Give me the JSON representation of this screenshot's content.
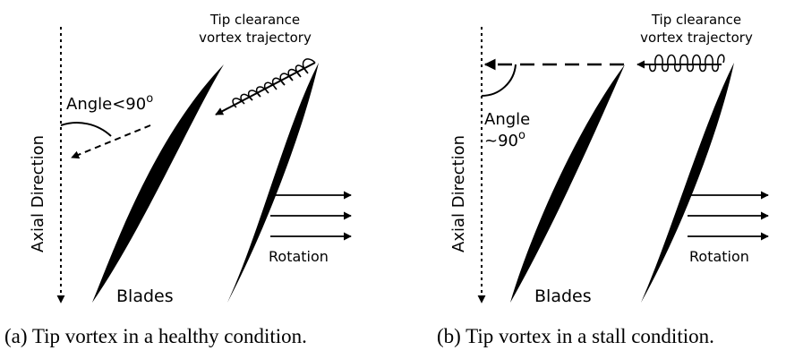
{
  "panels": [
    {
      "caption": "(a) Tip vortex in a healthy condition.",
      "vortex_label_line1": "Tip clearance",
      "vortex_label_line2": "vortex trajectory",
      "angle_label_line1": "Angle<90",
      "angle_label_line2": "",
      "angle_degree": "o",
      "axis_label": "Axial Direction",
      "blades_label": "Blades",
      "rotation_label": "Rotation"
    },
    {
      "caption": "(b) Tip vortex in a stall condition.",
      "vortex_label_line1": "Tip clearance",
      "vortex_label_line2": "vortex trajectory",
      "angle_label_line1": "Angle",
      "angle_label_line2": "~90",
      "angle_degree": "o",
      "axis_label": "Axial Direction",
      "blades_label": "Blades",
      "rotation_label": "Rotation"
    }
  ]
}
